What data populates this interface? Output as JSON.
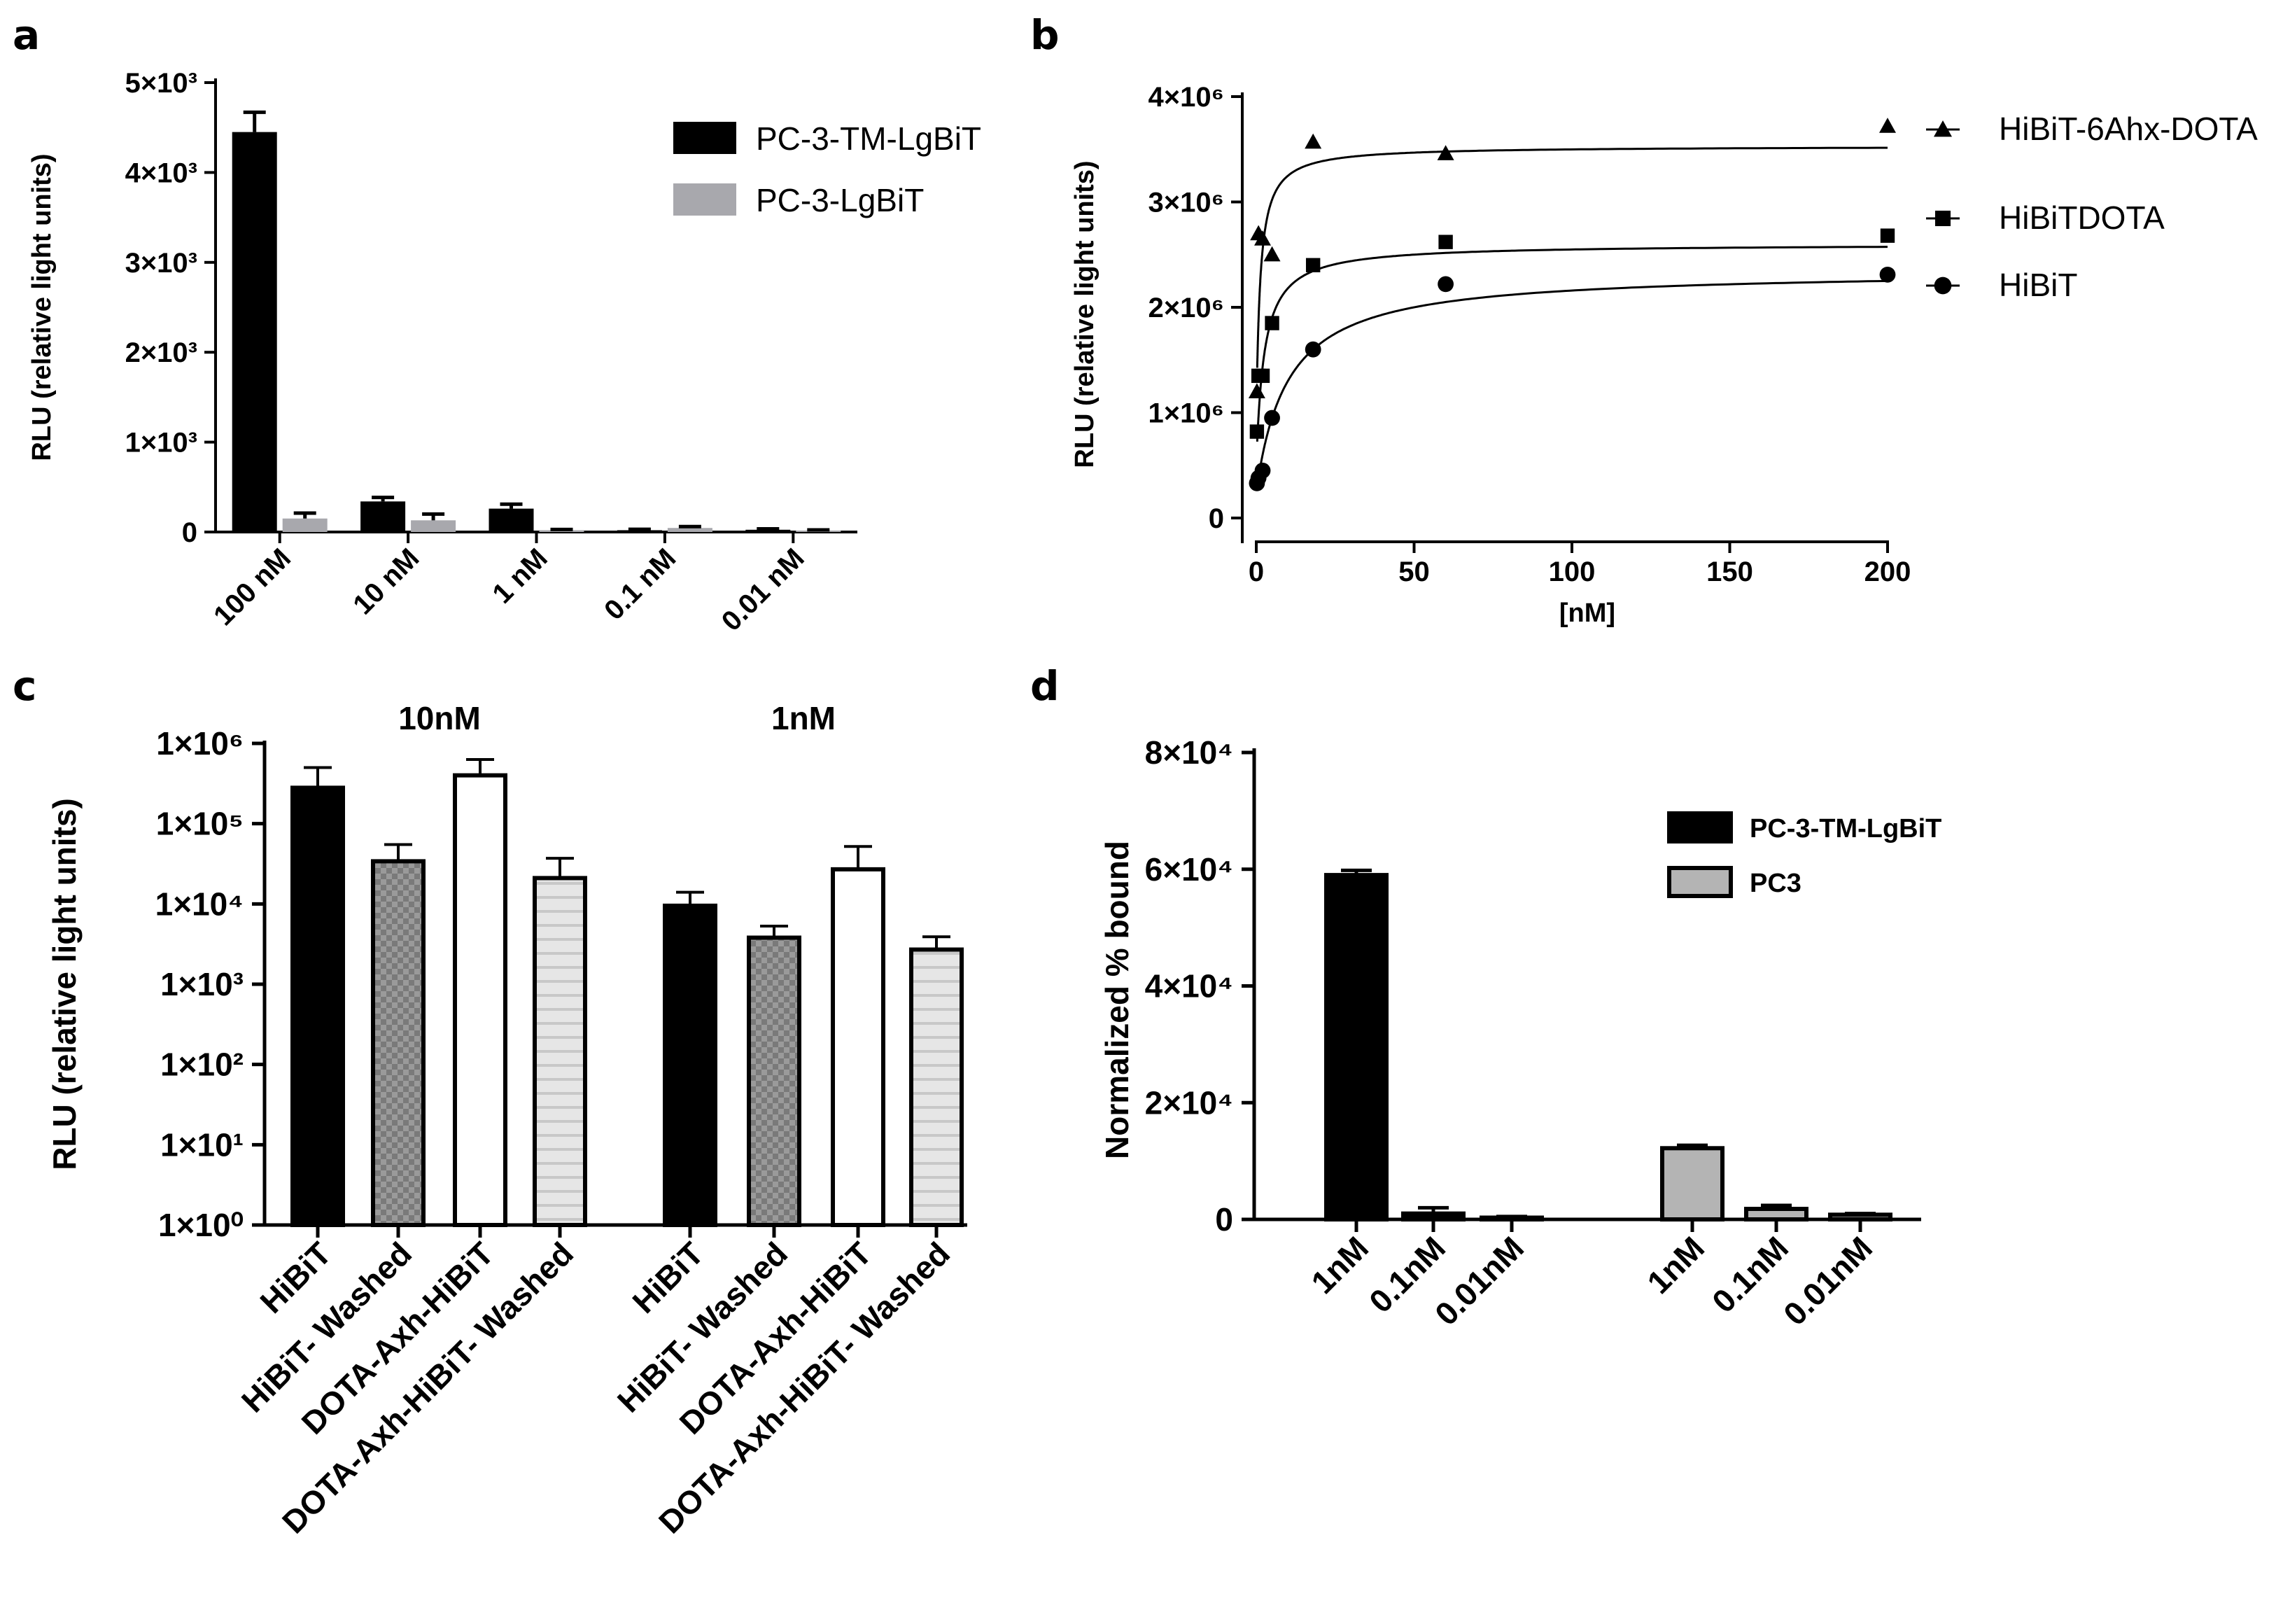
{
  "figure": {
    "panels": [
      "a",
      "b",
      "c",
      "d"
    ]
  },
  "chart_data": [
    {
      "id": "a",
      "type": "bar",
      "panel_label": "a",
      "ylabel": "RLU (relative light units)",
      "xlabel": "",
      "ylim": [
        0,
        5000
      ],
      "yticks": [
        0,
        1000,
        2000,
        3000,
        4000,
        5000
      ],
      "ytick_labels": [
        "0",
        "1×10³",
        "2×10³",
        "3×10³",
        "4×10³",
        "5×10³"
      ],
      "categories": [
        "100 nM",
        "10 nM",
        "1 nM",
        "0.1 nM",
        "0.01 nM"
      ],
      "series": [
        {
          "name": "PC-3-TM-LgBiT",
          "color": "#000000",
          "values": [
            4450,
            340,
            260,
            20,
            25
          ],
          "errors": [
            220,
            45,
            50,
            10,
            10
          ]
        },
        {
          "name": "PC-3-LgBiT",
          "color": "#a8a8ad",
          "values": [
            150,
            130,
            20,
            45,
            15
          ],
          "errors": [
            60,
            70,
            8,
            15,
            8
          ]
        }
      ],
      "legend_position": "top-right"
    },
    {
      "id": "b",
      "type": "scatter",
      "panel_label": "b",
      "ylabel": "RLU (relative light units)",
      "xlabel": "[nM]",
      "xlim": [
        0,
        200
      ],
      "xticks": [
        0,
        50,
        100,
        150,
        200
      ],
      "ylim": [
        0,
        4000000
      ],
      "yticks": [
        0,
        1000000,
        2000000,
        3000000,
        4000000
      ],
      "ytick_labels": [
        "0",
        "1×10⁶",
        "2×10⁶",
        "3×10⁶",
        "4×10⁶"
      ],
      "series": [
        {
          "name": "HiBiT-6Ahx-DOTA",
          "marker": "triangle",
          "x": [
            0.2,
            0.7,
            2,
            5,
            18,
            60,
            200
          ],
          "y": [
            1200000,
            2700000,
            2650000,
            2500000,
            3570000,
            3460000,
            3720000
          ],
          "fit": {
            "top": 3530000,
            "bottom": 900000,
            "ec50": 1.2
          }
        },
        {
          "name": "HiBiTDOTA",
          "marker": "square",
          "x": [
            0.2,
            0.7,
            2,
            5,
            18,
            60,
            200
          ],
          "y": [
            820000,
            1350000,
            1350000,
            1850000,
            2400000,
            2620000,
            2680000
          ],
          "fit": {
            "top": 2600000,
            "bottom": 500000,
            "ec50": 2.5
          }
        },
        {
          "name": "HiBiT",
          "marker": "circle",
          "x": [
            0.2,
            0.7,
            2,
            5,
            18,
            60,
            200
          ],
          "y": [
            330000,
            380000,
            450000,
            950000,
            1600000,
            2220000,
            2310000
          ],
          "fit": {
            "top": 2350000,
            "bottom": 250000,
            "ec50": 10
          }
        }
      ],
      "legend_position": "right"
    },
    {
      "id": "c",
      "type": "bar",
      "panel_label": "c",
      "ylabel": "RLU (relative light units)",
      "yscale": "log",
      "ylim": [
        1,
        1000000
      ],
      "yticks": [
        1,
        10,
        100,
        1000,
        10000,
        100000,
        1000000
      ],
      "ytick_labels": [
        "1×10⁰",
        "1×10¹",
        "1×10²",
        "1×10³",
        "1×10⁴",
        "1×10⁵",
        "1×10⁶"
      ],
      "group_labels": [
        "10nM",
        "1nM"
      ],
      "categories": [
        "HiBiT",
        "HiBiT- Washed",
        "DOTA-Axh-HiBiT",
        "DOTA-Axh-HiBiT- Washed",
        "HiBiT",
        "HiBiT- Washed",
        "DOTA-Axh-HiBiT",
        "DOTA-Axh-HiBiT- Washed"
      ],
      "values": [
        280000,
        34000,
        400000,
        21000,
        9500,
        3800,
        27000,
        2700
      ],
      "errors_upper": [
        500000,
        55000,
        630000,
        37000,
        14000,
        5300,
        52000,
        3900
      ],
      "fills": [
        "black",
        "checker",
        "white",
        "hstripe",
        "black",
        "checker",
        "white",
        "hstripe"
      ]
    },
    {
      "id": "d",
      "type": "bar",
      "panel_label": "d",
      "ylabel": "Normalized % bound",
      "ylim": [
        0,
        80000
      ],
      "yticks": [
        0,
        20000,
        40000,
        60000,
        80000
      ],
      "ytick_labels": [
        "0",
        "2×10⁴",
        "4×10⁴",
        "6×10⁴",
        "8×10⁴"
      ],
      "categories": [
        "1nM",
        "0.1nM",
        "0.01nM",
        "1nM",
        "0.1nM",
        "0.01nM"
      ],
      "values": [
        59000,
        1000,
        300,
        12200,
        1800,
        800
      ],
      "errors": [
        800,
        1000,
        200,
        500,
        600,
        200
      ],
      "series_of_bar": [
        0,
        0,
        0,
        1,
        1,
        1
      ],
      "series": [
        {
          "name": "PC-3-TM-LgBiT",
          "color": "#000000"
        },
        {
          "name": "PC3",
          "color": "#b4b4b4"
        }
      ],
      "legend_position": "top-right"
    }
  ]
}
